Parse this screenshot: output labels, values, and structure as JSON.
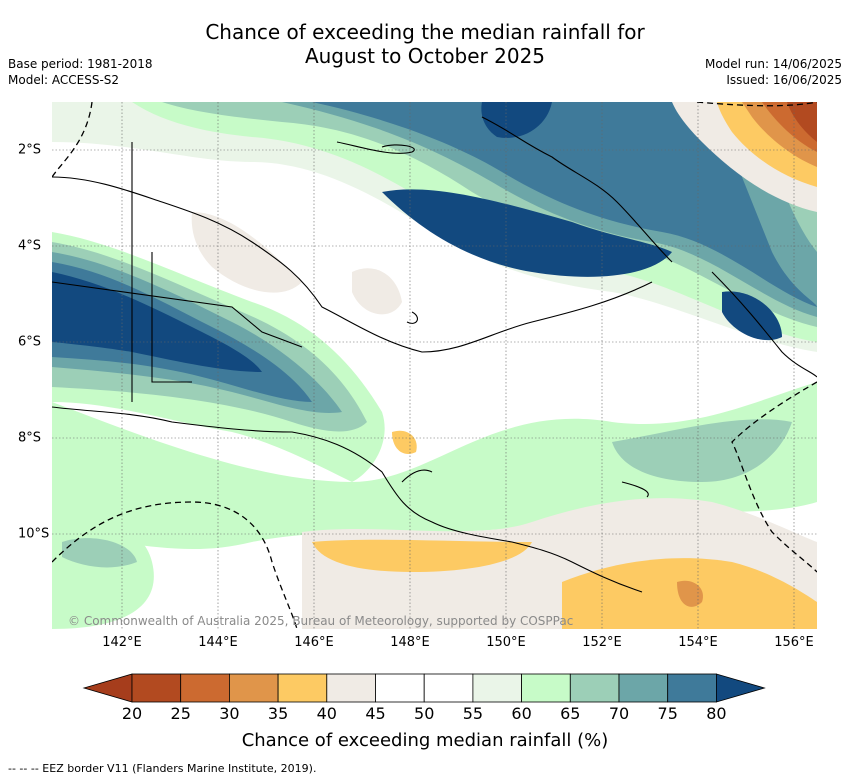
{
  "title_line1": "Chance of exceeding the median rainfall for",
  "title_line2": "August to October 2025",
  "meta": {
    "base_period": "Base period: 1981-2018",
    "model": "Model: ACCESS-S2",
    "model_run": "Model run: 14/06/2025",
    "issued": "Issued: 16/06/2025"
  },
  "longitude_labels": [
    "142°E",
    "144°E",
    "146°E",
    "148°E",
    "150°E",
    "152°E",
    "154°E",
    "156°E"
  ],
  "latitude_labels": [
    "2°S",
    "4°S",
    "6°S",
    "8°S",
    "10°S"
  ],
  "copyright": "© Commonwealth of Australia 2025, Bureau of Meteorology, supported by COSPPac",
  "colorbar": {
    "ticks": [
      "20",
      "25",
      "30",
      "35",
      "40",
      "45",
      "50",
      "55",
      "60",
      "65",
      "70",
      "75",
      "80"
    ],
    "colors": [
      "#b24a20",
      "#cc6a30",
      "#e0954a",
      "#fdca63",
      "#f0ebe5",
      "#ffffff",
      "#ffffff",
      "#eaf5e8",
      "#c7fbc8",
      "#9ccfb7",
      "#6ca6a8",
      "#3f7a9a"
    ],
    "low_color": "#a63d1c",
    "high_color": "#12497f",
    "label": "Chance of exceeding median rainfall (%)"
  },
  "footer": "--  --  -- EEZ border V11 (Flanders Marine Institute, 2019)."
}
